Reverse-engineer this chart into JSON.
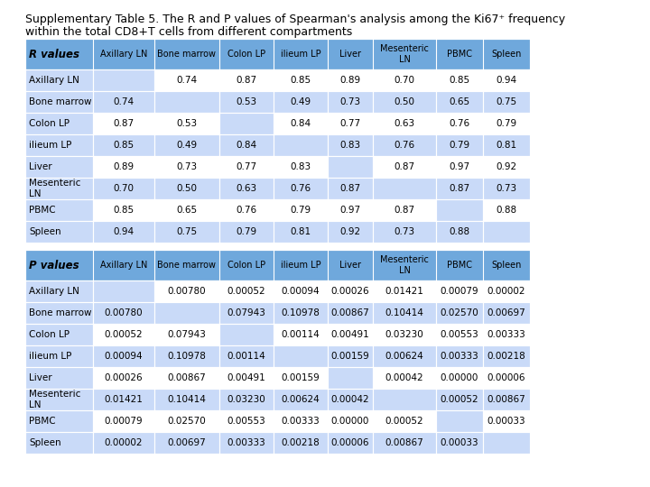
{
  "title_line1": "Supplementary Table 5. The R and P values of Spearman's analysis among the Ki67⁺ frequency",
  "title_line2": "within the total CD8+T cells from different compartments",
  "col_headers": [
    "Axillary LN",
    "Bone marrow",
    "Colon LP",
    "ilieum LP",
    "Liver",
    "Mesenteric\nLN",
    "PBMC",
    "Spleen"
  ],
  "row_headers": [
    "Axillary LN",
    "Bone marrow",
    "Colon LP",
    "ilieum LP",
    "Liver",
    "Mesenteric\nLN",
    "PBMC",
    "Spleen"
  ],
  "r_values": [
    [
      "",
      "0.74",
      "0.87",
      "0.85",
      "0.89",
      "0.70",
      "0.85",
      "0.94"
    ],
    [
      "0.74",
      "",
      "0.53",
      "0.49",
      "0.73",
      "0.50",
      "0.65",
      "0.75"
    ],
    [
      "0.87",
      "0.53",
      "",
      "0.84",
      "0.77",
      "0.63",
      "0.76",
      "0.79"
    ],
    [
      "0.85",
      "0.49",
      "0.84",
      "",
      "0.83",
      "0.76",
      "0.79",
      "0.81"
    ],
    [
      "0.89",
      "0.73",
      "0.77",
      "0.83",
      "",
      "0.87",
      "0.97",
      "0.92"
    ],
    [
      "0.70",
      "0.50",
      "0.63",
      "0.76",
      "0.87",
      "",
      "0.87",
      "0.73"
    ],
    [
      "0.85",
      "0.65",
      "0.76",
      "0.79",
      "0.97",
      "0.87",
      "",
      "0.88"
    ],
    [
      "0.94",
      "0.75",
      "0.79",
      "0.81",
      "0.92",
      "0.73",
      "0.88",
      ""
    ]
  ],
  "p_values": [
    [
      "",
      "0.00780",
      "0.00052",
      "0.00094",
      "0.00026",
      "0.01421",
      "0.00079",
      "0.00002"
    ],
    [
      "0.00780",
      "",
      "0.07943",
      "0.10978",
      "0.00867",
      "0.10414",
      "0.02570",
      "0.00697"
    ],
    [
      "0.00052",
      "0.07943",
      "",
      "0.00114",
      "0.00491",
      "0.03230",
      "0.00553",
      "0.00333"
    ],
    [
      "0.00094",
      "0.10978",
      "0.00114",
      "",
      "0.00159",
      "0.00624",
      "0.00333",
      "0.00218"
    ],
    [
      "0.00026",
      "0.00867",
      "0.00491",
      "0.00159",
      "",
      "0.00042",
      "0.00000",
      "0.00006"
    ],
    [
      "0.01421",
      "0.10414",
      "0.03230",
      "0.00624",
      "0.00042",
      "",
      "0.00052",
      "0.00867"
    ],
    [
      "0.00079",
      "0.02570",
      "0.00553",
      "0.00333",
      "0.00000",
      "0.00052",
      "",
      "0.00033"
    ],
    [
      "0.00002",
      "0.00697",
      "0.00333",
      "0.00218",
      "0.00006",
      "0.00867",
      "0.00033",
      ""
    ]
  ],
  "header_bg": "#6fa8dc",
  "cell_bg_light": "#c9daf8",
  "cell_bg_diagonal": "#c9daf8",
  "text_color": "#000000",
  "font_size": 7.5,
  "header_font_size": 8.5,
  "title_font_size": 9.0
}
